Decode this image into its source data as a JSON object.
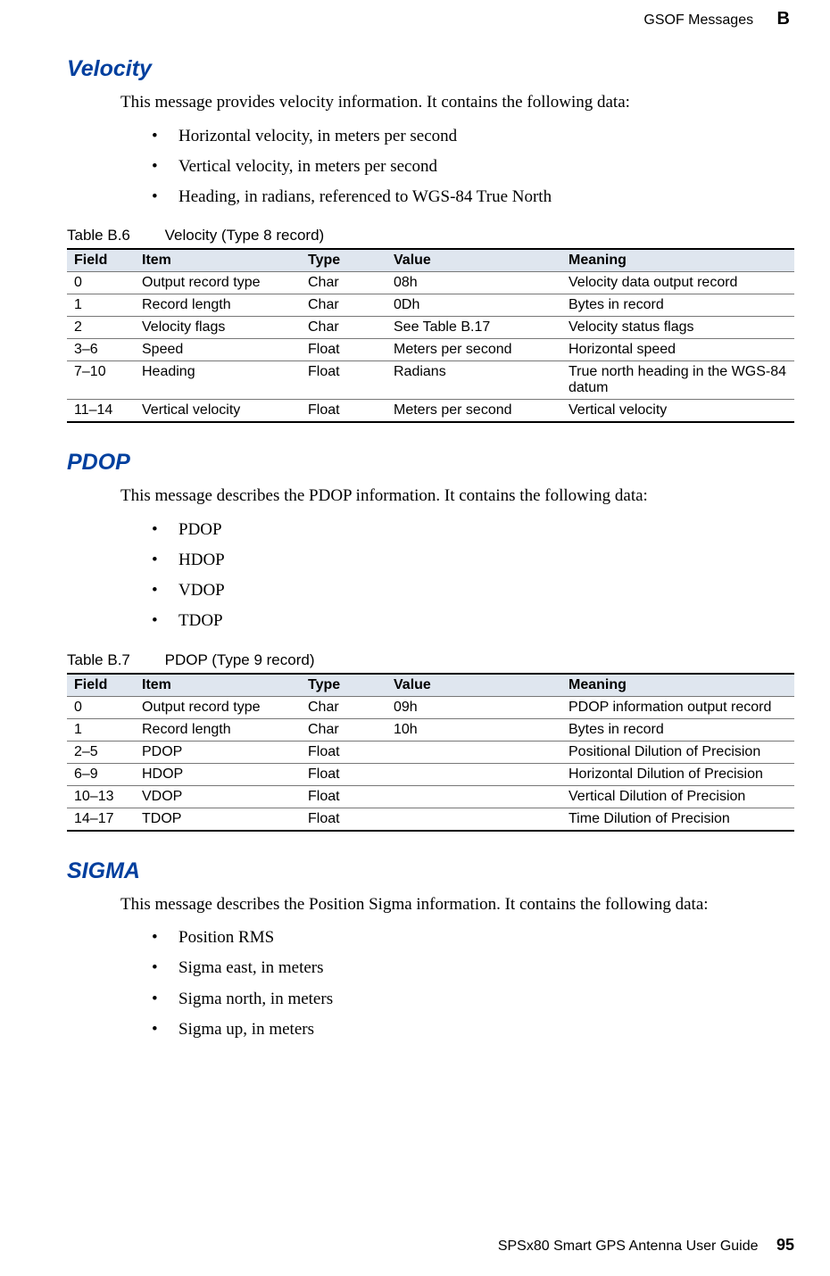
{
  "header": {
    "label": "GSOF Messages",
    "letter": "B"
  },
  "columns": {
    "field": "Field",
    "item": "Item",
    "type": "Type",
    "value": "Value",
    "meaning": "Meaning"
  },
  "colors": {
    "heading": "#003f9e",
    "table_header_bg": "#dfe6ef",
    "rule": "#000000",
    "row_rule": "#777777"
  },
  "velocity": {
    "title": "Velocity",
    "intro": "This message provides velocity information. It contains the following data:",
    "bullets": [
      "Horizontal velocity, in meters per second",
      "Vertical velocity, in meters per second",
      "Heading, in radians, referenced to WGS-84 True North"
    ],
    "table_num": "Table B.6",
    "table_title": "Velocity (Type 8 record)",
    "rows": [
      {
        "field": "0",
        "item": "Output record type",
        "type": "Char",
        "value": "08h",
        "meaning": "Velocity data output record"
      },
      {
        "field": "1",
        "item": "Record length",
        "type": "Char",
        "value": "0Dh",
        "meaning": "Bytes in record"
      },
      {
        "field": "2",
        "item": "Velocity flags",
        "type": "Char",
        "value": "See Table B.17",
        "meaning": "Velocity status flags"
      },
      {
        "field": "3–6",
        "item": "Speed",
        "type": "Float",
        "value": "Meters per second",
        "meaning": "Horizontal speed"
      },
      {
        "field": "7–10",
        "item": "Heading",
        "type": "Float",
        "value": "Radians",
        "meaning": "True north heading in the WGS-84 datum"
      },
      {
        "field": "11–14",
        "item": "Vertical velocity",
        "type": "Float",
        "value": "Meters per second",
        "meaning": "Vertical velocity"
      }
    ]
  },
  "pdop": {
    "title": "PDOP",
    "intro": "This message describes the PDOP information. It contains the following data:",
    "bullets": [
      "PDOP",
      "HDOP",
      "VDOP",
      "TDOP"
    ],
    "table_num": "Table B.7",
    "table_title": "PDOP (Type 9 record)",
    "rows": [
      {
        "field": "0",
        "item": "Output record type",
        "type": "Char",
        "value": "09h",
        "meaning": "PDOP information output record"
      },
      {
        "field": "1",
        "item": "Record length",
        "type": "Char",
        "value": "10h",
        "meaning": "Bytes in record"
      },
      {
        "field": "2–5",
        "item": "PDOP",
        "type": "Float",
        "value": "",
        "meaning": "Positional Dilution of Precision"
      },
      {
        "field": "6–9",
        "item": "HDOP",
        "type": "Float",
        "value": "",
        "meaning": "Horizontal Dilution of Precision"
      },
      {
        "field": "10–13",
        "item": "VDOP",
        "type": "Float",
        "value": "",
        "meaning": "Vertical Dilution of Precision"
      },
      {
        "field": "14–17",
        "item": "TDOP",
        "type": "Float",
        "value": "",
        "meaning": "Time Dilution of Precision"
      }
    ]
  },
  "sigma": {
    "title": "SIGMA",
    "intro": "This message describes the Position Sigma information. It contains the following data:",
    "bullets": [
      "Position RMS",
      "Sigma east, in meters",
      "Sigma north, in meters",
      "Sigma up, in meters"
    ]
  },
  "footer": {
    "book": "SPSx80 Smart GPS Antenna User Guide",
    "page": "95"
  }
}
